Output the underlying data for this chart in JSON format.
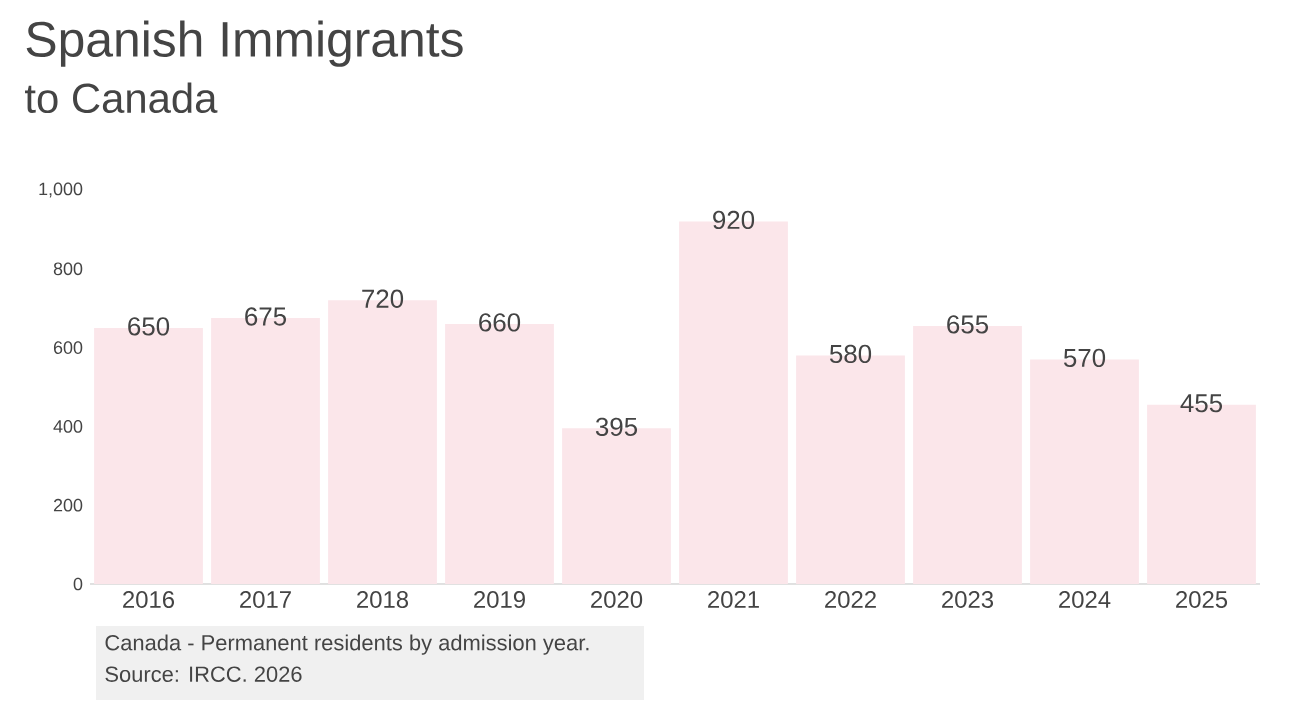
{
  "chart_data": {
    "type": "bar",
    "title": "Spanish Immigrants",
    "subtitle": "to Canada",
    "categories": [
      "2016",
      "2017",
      "2018",
      "2019",
      "2020",
      "2021",
      "2022",
      "2023",
      "2024",
      "2025"
    ],
    "values": [
      650,
      675,
      720,
      660,
      395,
      920,
      580,
      655,
      570,
      455
    ],
    "color": "#fbe6ea",
    "ylim": [
      0,
      1000
    ],
    "yticks": [
      0,
      200,
      400,
      600,
      800,
      {
        "value": 1000,
        "label": "1,000"
      }
    ],
    "data_labels": true,
    "annotations": [
      "Canada - Permanent residents by admission year.",
      "Source: IRCC. 2026"
    ]
  }
}
